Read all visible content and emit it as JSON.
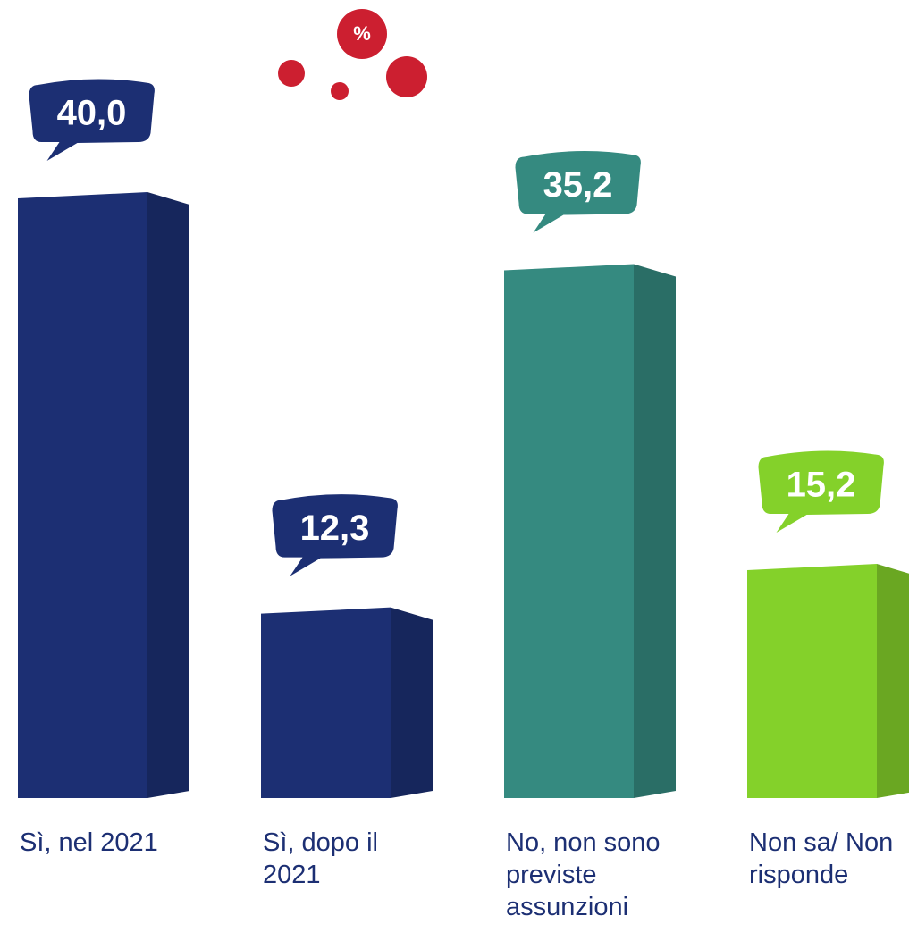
{
  "chart_data": {
    "type": "bar3d",
    "unit": "%",
    "categories": [
      "Sì, nel 2021",
      "Sì, dopo il 2021",
      "No, non sono previste assunzioni",
      "Non sa/ Non risponde"
    ],
    "values": [
      40.0,
      12.3,
      35.2,
      15.2
    ],
    "value_labels": [
      "40,0",
      "12,3",
      "35,2",
      "15,2"
    ],
    "colors": [
      "#1c2f73",
      "#1c2f73",
      "#358a80",
      "#84d12a"
    ],
    "badge_color": "#cc1f30"
  }
}
